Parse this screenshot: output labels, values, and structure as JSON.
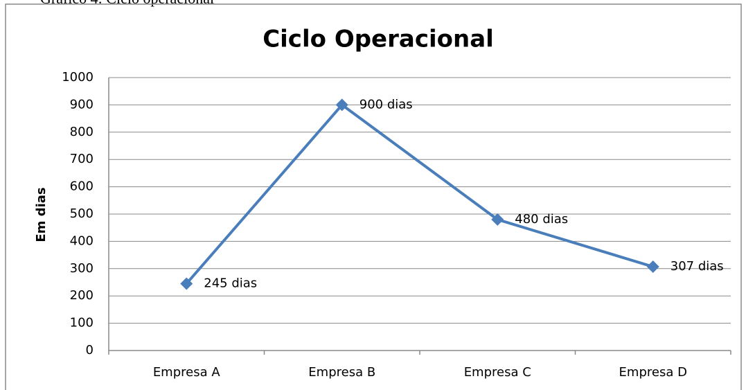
{
  "caption": "Gráfico 4: Ciclo operacional",
  "chart_data": {
    "type": "line",
    "title": "Ciclo Operacional",
    "y_label": "Em dias",
    "categories": [
      "Empresa A",
      "Empresa B",
      "Empresa C",
      "Empresa D"
    ],
    "values": [
      245,
      900,
      480,
      307
    ],
    "value_labels": [
      "245 dias",
      "900 dias",
      "480 dias",
      "307 dias"
    ],
    "color": "#4a7ebb",
    "ylim": [
      0,
      1000
    ],
    "yticks": [
      0,
      100,
      200,
      300,
      400,
      500,
      600,
      700,
      800,
      900,
      1000
    ],
    "grid": true
  }
}
